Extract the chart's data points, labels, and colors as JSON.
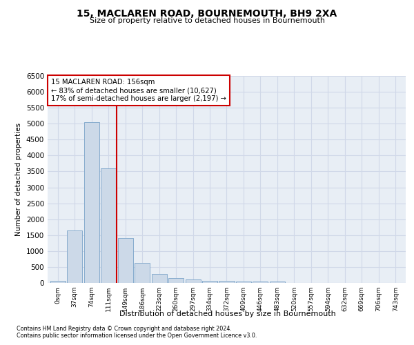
{
  "title": "15, MACLAREN ROAD, BOURNEMOUTH, BH9 2XA",
  "subtitle": "Size of property relative to detached houses in Bournemouth",
  "xlabel": "Distribution of detached houses by size in Bournemouth",
  "ylabel": "Number of detached properties",
  "footnote1": "Contains HM Land Registry data © Crown copyright and database right 2024.",
  "footnote2": "Contains public sector information licensed under the Open Government Licence v3.0.",
  "bar_labels": [
    "0sqm",
    "37sqm",
    "74sqm",
    "111sqm",
    "149sqm",
    "186sqm",
    "223sqm",
    "260sqm",
    "297sqm",
    "334sqm",
    "372sqm",
    "409sqm",
    "446sqm",
    "483sqm",
    "520sqm",
    "557sqm",
    "594sqm",
    "632sqm",
    "669sqm",
    "706sqm",
    "743sqm"
  ],
  "bar_values": [
    75,
    1650,
    5050,
    3600,
    1400,
    620,
    290,
    145,
    100,
    75,
    55,
    50,
    50,
    40,
    0,
    0,
    0,
    0,
    0,
    0,
    0
  ],
  "bar_color": "#ccd9e8",
  "bar_edgecolor": "#7aa3c8",
  "ylim": [
    0,
    6500
  ],
  "yticks": [
    0,
    500,
    1000,
    1500,
    2000,
    2500,
    3000,
    3500,
    4000,
    4500,
    5000,
    5500,
    6000,
    6500
  ],
  "vline_x": 3.5,
  "vline_color": "#cc0000",
  "annotation_title": "15 MACLAREN ROAD: 156sqm",
  "annotation_line1": "← 83% of detached houses are smaller (10,627)",
  "annotation_line2": "17% of semi-detached houses are larger (2,197) →",
  "annotation_box_color": "#cc0000",
  "grid_color": "#d0d8e8",
  "background_color": "#e8eef5"
}
